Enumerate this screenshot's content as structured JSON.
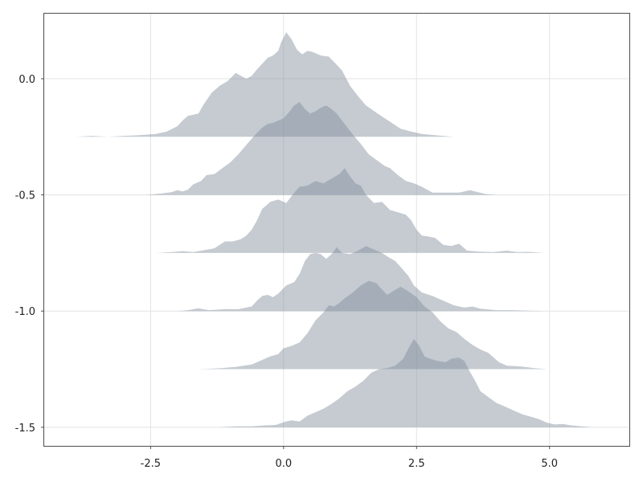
{
  "colors": {
    "background": "#ffffff",
    "frame": "#4d4d4d",
    "grid": "#e3e3e3",
    "density_fill": "#7f8c98",
    "density_opacity": 0.45
  },
  "chart_data": {
    "type": "area",
    "subtype": "ridgeline-density",
    "title": "",
    "xlabel": "",
    "ylabel": "",
    "xlim": [
      -4.5,
      6.5
    ],
    "ylim": [
      -1.58,
      0.28
    ],
    "grid": true,
    "legend": "none",
    "x_ticks": [
      {
        "value": -2.5,
        "label": "-2.5"
      },
      {
        "value": 0.0,
        "label": "0.0"
      },
      {
        "value": 2.5,
        "label": "2.5"
      },
      {
        "value": 5.0,
        "label": "5.0"
      }
    ],
    "y_ticks": [
      {
        "value": 0.0,
        "label": "0.0"
      },
      {
        "value": -0.5,
        "label": "-0.5"
      },
      {
        "value": -1.0,
        "label": "-1.0"
      },
      {
        "value": -1.5,
        "label": "-1.5"
      }
    ],
    "series": [
      {
        "baseline": -0.25,
        "points": [
          [
            -3.9,
            0
          ],
          [
            -3.6,
            0.004
          ],
          [
            -3.3,
            0
          ],
          [
            -3.0,
            0.004
          ],
          [
            -2.7,
            0.007
          ],
          [
            -2.4,
            0.012
          ],
          [
            -2.2,
            0.022
          ],
          [
            -2.0,
            0.045
          ],
          [
            -1.9,
            0.07
          ],
          [
            -1.8,
            0.09
          ],
          [
            -1.6,
            0.1
          ],
          [
            -1.5,
            0.14
          ],
          [
            -1.35,
            0.19
          ],
          [
            -1.2,
            0.22
          ],
          [
            -1.05,
            0.24
          ],
          [
            -0.9,
            0.275
          ],
          [
            -0.8,
            0.262
          ],
          [
            -0.7,
            0.25
          ],
          [
            -0.6,
            0.262
          ],
          [
            -0.5,
            0.29
          ],
          [
            -0.4,
            0.315
          ],
          [
            -0.3,
            0.34
          ],
          [
            -0.2,
            0.35
          ],
          [
            -0.1,
            0.37
          ],
          [
            -0.05,
            0.405
          ],
          [
            0.05,
            0.45
          ],
          [
            0.15,
            0.42
          ],
          [
            0.25,
            0.375
          ],
          [
            0.35,
            0.355
          ],
          [
            0.45,
            0.37
          ],
          [
            0.55,
            0.365
          ],
          [
            0.7,
            0.35
          ],
          [
            0.85,
            0.345
          ],
          [
            1.0,
            0.31
          ],
          [
            1.1,
            0.285
          ],
          [
            1.25,
            0.22
          ],
          [
            1.4,
            0.175
          ],
          [
            1.55,
            0.135
          ],
          [
            1.8,
            0.095
          ],
          [
            2.0,
            0.065
          ],
          [
            2.2,
            0.035
          ],
          [
            2.4,
            0.022
          ],
          [
            2.6,
            0.012
          ],
          [
            2.9,
            0.006
          ],
          [
            3.2,
            0
          ]
        ]
      },
      {
        "baseline": -0.5,
        "points": [
          [
            -2.6,
            0
          ],
          [
            -2.3,
            0.006
          ],
          [
            -2.1,
            0.012
          ],
          [
            -2.0,
            0.02
          ],
          [
            -1.9,
            0.015
          ],
          [
            -1.8,
            0.022
          ],
          [
            -1.7,
            0.045
          ],
          [
            -1.55,
            0.06
          ],
          [
            -1.45,
            0.085
          ],
          [
            -1.3,
            0.09
          ],
          [
            -1.15,
            0.115
          ],
          [
            -1.0,
            0.14
          ],
          [
            -0.85,
            0.175
          ],
          [
            -0.7,
            0.215
          ],
          [
            -0.55,
            0.255
          ],
          [
            -0.4,
            0.29
          ],
          [
            -0.3,
            0.305
          ],
          [
            -0.2,
            0.31
          ],
          [
            -0.1,
            0.32
          ],
          [
            0.0,
            0.33
          ],
          [
            0.1,
            0.355
          ],
          [
            0.2,
            0.385
          ],
          [
            0.3,
            0.4
          ],
          [
            0.4,
            0.37
          ],
          [
            0.5,
            0.35
          ],
          [
            0.6,
            0.36
          ],
          [
            0.7,
            0.375
          ],
          [
            0.8,
            0.385
          ],
          [
            0.9,
            0.37
          ],
          [
            1.0,
            0.35
          ],
          [
            1.1,
            0.32
          ],
          [
            1.3,
            0.26
          ],
          [
            1.45,
            0.22
          ],
          [
            1.6,
            0.175
          ],
          [
            1.75,
            0.15
          ],
          [
            1.9,
            0.125
          ],
          [
            2.0,
            0.115
          ],
          [
            2.15,
            0.085
          ],
          [
            2.3,
            0.06
          ],
          [
            2.45,
            0.05
          ],
          [
            2.6,
            0.035
          ],
          [
            2.8,
            0.01
          ],
          [
            3.0,
            0.01
          ],
          [
            3.3,
            0.01
          ],
          [
            3.5,
            0.02
          ],
          [
            3.65,
            0.012
          ],
          [
            3.8,
            0.004
          ],
          [
            4.0,
            0
          ]
        ]
      },
      {
        "baseline": -0.75,
        "points": [
          [
            -2.4,
            0
          ],
          [
            -2.1,
            0.004
          ],
          [
            -1.9,
            0.008
          ],
          [
            -1.7,
            0.004
          ],
          [
            -1.5,
            0.012
          ],
          [
            -1.3,
            0.02
          ],
          [
            -1.2,
            0.035
          ],
          [
            -1.1,
            0.05
          ],
          [
            -0.95,
            0.05
          ],
          [
            -0.8,
            0.06
          ],
          [
            -0.7,
            0.075
          ],
          [
            -0.6,
            0.1
          ],
          [
            -0.5,
            0.14
          ],
          [
            -0.4,
            0.19
          ],
          [
            -0.25,
            0.22
          ],
          [
            -0.1,
            0.23
          ],
          [
            0.05,
            0.215
          ],
          [
            0.2,
            0.26
          ],
          [
            0.3,
            0.285
          ],
          [
            0.45,
            0.29
          ],
          [
            0.6,
            0.31
          ],
          [
            0.75,
            0.3
          ],
          [
            0.9,
            0.32
          ],
          [
            1.05,
            0.34
          ],
          [
            1.15,
            0.365
          ],
          [
            1.25,
            0.33
          ],
          [
            1.35,
            0.3
          ],
          [
            1.45,
            0.29
          ],
          [
            1.55,
            0.25
          ],
          [
            1.7,
            0.215
          ],
          [
            1.85,
            0.22
          ],
          [
            2.0,
            0.185
          ],
          [
            2.15,
            0.175
          ],
          [
            2.3,
            0.165
          ],
          [
            2.4,
            0.14
          ],
          [
            2.5,
            0.1
          ],
          [
            2.6,
            0.075
          ],
          [
            2.7,
            0.072
          ],
          [
            2.85,
            0.065
          ],
          [
            3.0,
            0.035
          ],
          [
            3.15,
            0.03
          ],
          [
            3.3,
            0.04
          ],
          [
            3.45,
            0.01
          ],
          [
            3.7,
            0.006
          ],
          [
            3.95,
            0.004
          ],
          [
            4.2,
            0.01
          ],
          [
            4.4,
            0.004
          ],
          [
            4.6,
            0.005
          ],
          [
            4.9,
            0
          ]
        ]
      },
      {
        "baseline": -1.0,
        "points": [
          [
            -2.0,
            0
          ],
          [
            -1.8,
            0.004
          ],
          [
            -1.6,
            0.012
          ],
          [
            -1.4,
            0.004
          ],
          [
            -1.1,
            0.008
          ],
          [
            -0.85,
            0.008
          ],
          [
            -0.6,
            0.02
          ],
          [
            -0.5,
            0.045
          ],
          [
            -0.4,
            0.065
          ],
          [
            -0.3,
            0.07
          ],
          [
            -0.2,
            0.06
          ],
          [
            -0.1,
            0.075
          ],
          [
            0.05,
            0.11
          ],
          [
            0.2,
            0.125
          ],
          [
            0.3,
            0.16
          ],
          [
            0.4,
            0.215
          ],
          [
            0.5,
            0.245
          ],
          [
            0.6,
            0.25
          ],
          [
            0.7,
            0.245
          ],
          [
            0.8,
            0.225
          ],
          [
            0.9,
            0.245
          ],
          [
            1.0,
            0.275
          ],
          [
            1.1,
            0.25
          ],
          [
            1.25,
            0.245
          ],
          [
            1.4,
            0.26
          ],
          [
            1.55,
            0.28
          ],
          [
            1.7,
            0.265
          ],
          [
            1.85,
            0.25
          ],
          [
            1.95,
            0.235
          ],
          [
            2.1,
            0.215
          ],
          [
            2.2,
            0.19
          ],
          [
            2.35,
            0.15
          ],
          [
            2.45,
            0.11
          ],
          [
            2.6,
            0.08
          ],
          [
            2.8,
            0.065
          ],
          [
            3.0,
            0.045
          ],
          [
            3.2,
            0.025
          ],
          [
            3.4,
            0.015
          ],
          [
            3.55,
            0.02
          ],
          [
            3.7,
            0.01
          ],
          [
            4.0,
            0.004
          ],
          [
            4.3,
            0.004
          ],
          [
            4.6,
            0.002
          ],
          [
            4.9,
            0
          ]
        ]
      },
      {
        "baseline": -1.25,
        "points": [
          [
            -1.6,
            0
          ],
          [
            -1.2,
            0.004
          ],
          [
            -0.9,
            0.01
          ],
          [
            -0.6,
            0.02
          ],
          [
            -0.4,
            0.04
          ],
          [
            -0.25,
            0.055
          ],
          [
            -0.1,
            0.065
          ],
          [
            0.0,
            0.09
          ],
          [
            0.15,
            0.1
          ],
          [
            0.3,
            0.115
          ],
          [
            0.45,
            0.155
          ],
          [
            0.6,
            0.21
          ],
          [
            0.75,
            0.245
          ],
          [
            0.85,
            0.275
          ],
          [
            0.95,
            0.27
          ],
          [
            1.05,
            0.285
          ],
          [
            1.15,
            0.305
          ],
          [
            1.3,
            0.33
          ],
          [
            1.45,
            0.36
          ],
          [
            1.6,
            0.38
          ],
          [
            1.75,
            0.37
          ],
          [
            1.8,
            0.355
          ],
          [
            1.95,
            0.32
          ],
          [
            2.05,
            0.335
          ],
          [
            2.2,
            0.355
          ],
          [
            2.35,
            0.335
          ],
          [
            2.5,
            0.31
          ],
          [
            2.65,
            0.27
          ],
          [
            2.8,
            0.245
          ],
          [
            2.95,
            0.205
          ],
          [
            3.1,
            0.175
          ],
          [
            3.25,
            0.16
          ],
          [
            3.4,
            0.13
          ],
          [
            3.55,
            0.105
          ],
          [
            3.7,
            0.085
          ],
          [
            3.85,
            0.07
          ],
          [
            3.95,
            0.05
          ],
          [
            4.05,
            0.03
          ],
          [
            4.2,
            0.015
          ],
          [
            4.45,
            0.012
          ],
          [
            4.7,
            0.005
          ],
          [
            4.95,
            0
          ]
        ]
      },
      {
        "baseline": -1.5,
        "points": [
          [
            -1.2,
            0
          ],
          [
            -0.9,
            0.004
          ],
          [
            -0.6,
            0.004
          ],
          [
            -0.35,
            0.008
          ],
          [
            -0.15,
            0.01
          ],
          [
            0.05,
            0.025
          ],
          [
            0.15,
            0.03
          ],
          [
            0.3,
            0.025
          ],
          [
            0.45,
            0.05
          ],
          [
            0.6,
            0.065
          ],
          [
            0.75,
            0.08
          ],
          [
            0.9,
            0.1
          ],
          [
            1.05,
            0.125
          ],
          [
            1.2,
            0.155
          ],
          [
            1.35,
            0.175
          ],
          [
            1.5,
            0.2
          ],
          [
            1.65,
            0.235
          ],
          [
            1.8,
            0.25
          ],
          [
            1.95,
            0.255
          ],
          [
            2.1,
            0.265
          ],
          [
            2.25,
            0.295
          ],
          [
            2.35,
            0.34
          ],
          [
            2.45,
            0.38
          ],
          [
            2.55,
            0.35
          ],
          [
            2.65,
            0.305
          ],
          [
            2.75,
            0.295
          ],
          [
            2.9,
            0.285
          ],
          [
            3.05,
            0.28
          ],
          [
            3.15,
            0.295
          ],
          [
            3.3,
            0.3
          ],
          [
            3.4,
            0.285
          ],
          [
            3.5,
            0.24
          ],
          [
            3.6,
            0.2
          ],
          [
            3.7,
            0.155
          ],
          [
            3.85,
            0.13
          ],
          [
            4.0,
            0.105
          ],
          [
            4.15,
            0.09
          ],
          [
            4.3,
            0.075
          ],
          [
            4.5,
            0.055
          ],
          [
            4.65,
            0.045
          ],
          [
            4.8,
            0.035
          ],
          [
            4.95,
            0.02
          ],
          [
            5.1,
            0.012
          ],
          [
            5.25,
            0.014
          ],
          [
            5.4,
            0.008
          ],
          [
            5.6,
            0.004
          ],
          [
            5.8,
            0
          ]
        ]
      }
    ]
  }
}
